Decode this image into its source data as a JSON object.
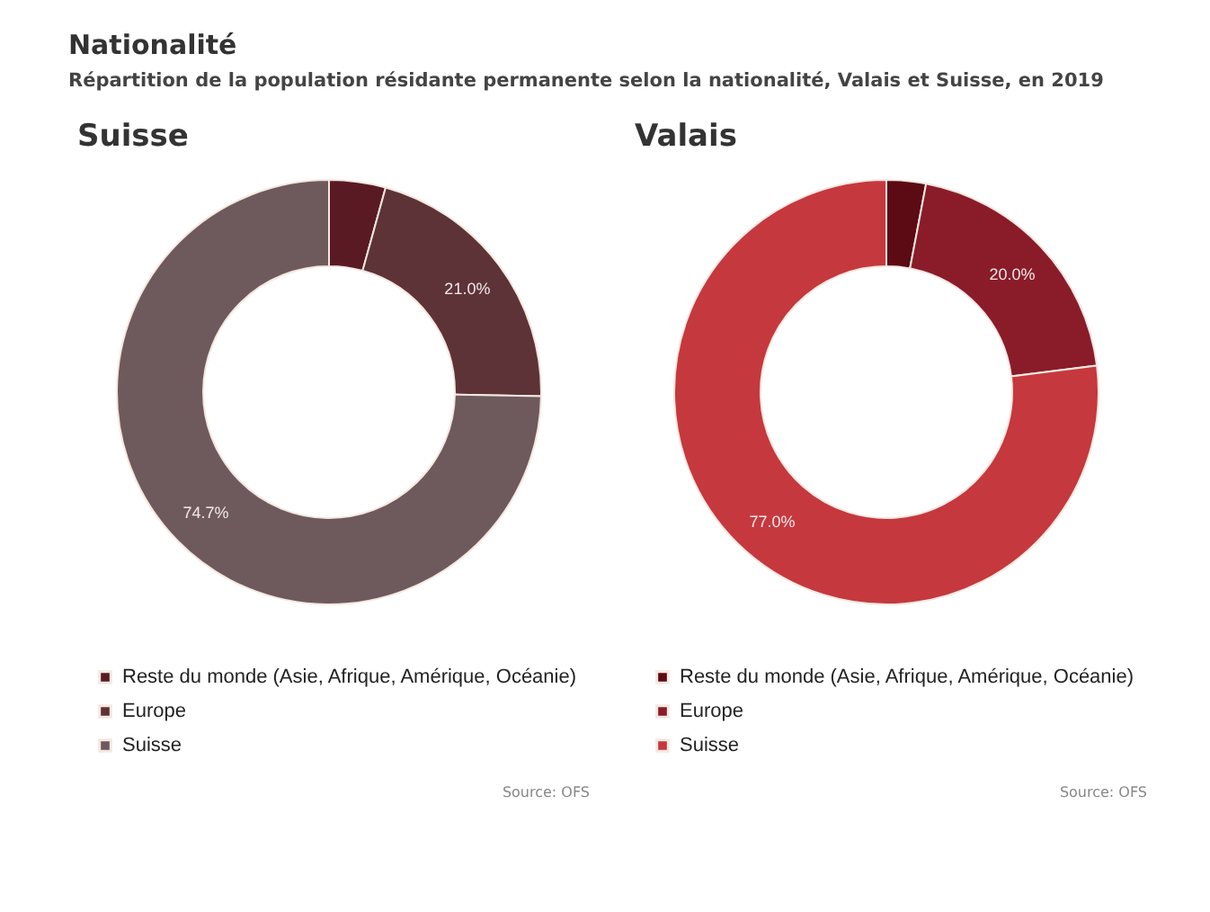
{
  "chart_data": [
    {
      "type": "other",
      "title": "Nationalité",
      "subtitle": "Répartition de la population résidante permanente selon la nationalité, Valais et Suisse, en 2019"
    },
    {
      "type": "donut",
      "title": "Suisse",
      "categories": [
        "Reste du monde (Asie, Afrique, Amérique, Océanie)",
        "Europe",
        "Suisse"
      ],
      "values": [
        4.3,
        21.0,
        74.7
      ],
      "colors": [
        "#5a1a24",
        "#5e3338",
        "#6e5a5c"
      ],
      "value_labels": [
        null,
        "21.0%",
        "74.7%"
      ],
      "legend": "bottom",
      "annotations": [
        "Source: OFS"
      ]
    },
    {
      "type": "donut",
      "title": "Valais",
      "categories": [
        "Reste du monde (Asie, Afrique, Amérique, Océanie)",
        "Europe",
        "Suisse"
      ],
      "values": [
        3.0,
        20.0,
        77.0
      ],
      "colors": [
        "#5c0a14",
        "#8a1c2a",
        "#c5383e"
      ],
      "value_labels": [
        null,
        "20.0%",
        "77.0%"
      ],
      "legend": "bottom",
      "annotations": [
        "Source: OFS"
      ]
    }
  ]
}
